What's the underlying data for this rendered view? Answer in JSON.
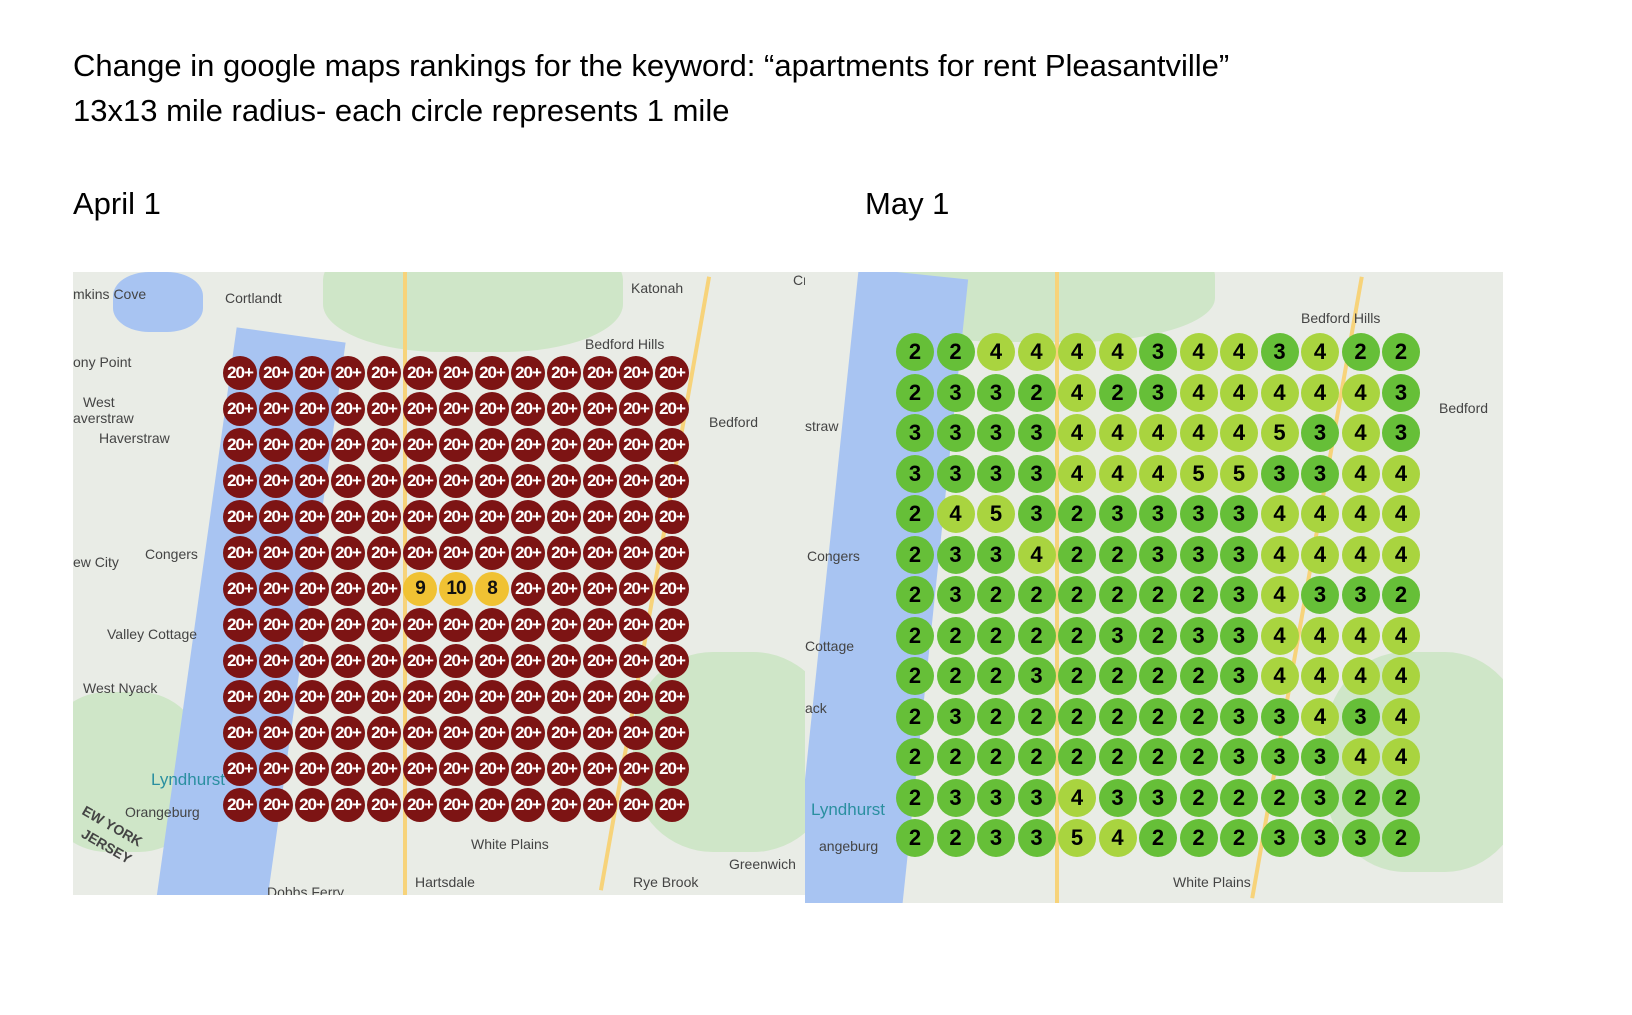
{
  "heading": {
    "line1": "Change in google maps rankings for the keyword: “apartments for rent Pleasantville”",
    "line2": "13x13 mile radius- each circle represents 1 mile"
  },
  "april": {
    "label": "April 1",
    "colors": {
      "not_ranked": "#7d1414",
      "ranked": "#f0c233"
    },
    "places": [
      "mkins Cove",
      "Cortlandt",
      "Katonah",
      "Cross R",
      "ony Point",
      "Bedford Hills",
      "West",
      "averstraw",
      "Haverstraw",
      "Bedford",
      "ew City",
      "Congers",
      "Valley Cottage",
      "West Nyack",
      "Lyndhurst",
      "Orangeburg",
      "White Plains",
      "Hartsdale",
      "Rye Brook",
      "Greenwich",
      "Dobbs Ferry",
      "EW YORK",
      "JERSEY"
    ],
    "grid": [
      [
        "20+",
        "20+",
        "20+",
        "20+",
        "20+",
        "20+",
        "20+",
        "20+",
        "20+",
        "20+",
        "20+",
        "20+",
        "20+"
      ],
      [
        "20+",
        "20+",
        "20+",
        "20+",
        "20+",
        "20+",
        "20+",
        "20+",
        "20+",
        "20+",
        "20+",
        "20+",
        "20+"
      ],
      [
        "20+",
        "20+",
        "20+",
        "20+",
        "20+",
        "20+",
        "20+",
        "20+",
        "20+",
        "20+",
        "20+",
        "20+",
        "20+"
      ],
      [
        "20+",
        "20+",
        "20+",
        "20+",
        "20+",
        "20+",
        "20+",
        "20+",
        "20+",
        "20+",
        "20+",
        "20+",
        "20+"
      ],
      [
        "20+",
        "20+",
        "20+",
        "20+",
        "20+",
        "20+",
        "20+",
        "20+",
        "20+",
        "20+",
        "20+",
        "20+",
        "20+"
      ],
      [
        "20+",
        "20+",
        "20+",
        "20+",
        "20+",
        "20+",
        "20+",
        "20+",
        "20+",
        "20+",
        "20+",
        "20+",
        "20+"
      ],
      [
        "20+",
        "20+",
        "20+",
        "20+",
        "20+",
        "9",
        "10",
        "8",
        "20+",
        "20+",
        "20+",
        "20+",
        "20+"
      ],
      [
        "20+",
        "20+",
        "20+",
        "20+",
        "20+",
        "20+",
        "20+",
        "20+",
        "20+",
        "20+",
        "20+",
        "20+",
        "20+"
      ],
      [
        "20+",
        "20+",
        "20+",
        "20+",
        "20+",
        "20+",
        "20+",
        "20+",
        "20+",
        "20+",
        "20+",
        "20+",
        "20+"
      ],
      [
        "20+",
        "20+",
        "20+",
        "20+",
        "20+",
        "20+",
        "20+",
        "20+",
        "20+",
        "20+",
        "20+",
        "20+",
        "20+"
      ],
      [
        "20+",
        "20+",
        "20+",
        "20+",
        "20+",
        "20+",
        "20+",
        "20+",
        "20+",
        "20+",
        "20+",
        "20+",
        "20+"
      ],
      [
        "20+",
        "20+",
        "20+",
        "20+",
        "20+",
        "20+",
        "20+",
        "20+",
        "20+",
        "20+",
        "20+",
        "20+",
        "20+"
      ],
      [
        "20+",
        "20+",
        "20+",
        "20+",
        "20+",
        "20+",
        "20+",
        "20+",
        "20+",
        "20+",
        "20+",
        "20+",
        "20+"
      ]
    ]
  },
  "may": {
    "label": "May 1",
    "colors": {
      "rank_2_3": "#66bf38",
      "rank_4_5": "#a9d43f"
    },
    "places": [
      "Bedford Hills",
      "Bedford",
      "straw",
      "Congers",
      "Cottage",
      "ack",
      "Lyndhurst",
      "angeburg",
      "White Plains"
    ],
    "grid": [
      [
        2,
        2,
        4,
        4,
        4,
        4,
        3,
        4,
        4,
        3,
        4,
        2,
        2
      ],
      [
        2,
        3,
        3,
        2,
        4,
        2,
        3,
        4,
        4,
        4,
        4,
        4,
        3
      ],
      [
        3,
        3,
        3,
        3,
        4,
        4,
        4,
        4,
        4,
        5,
        3,
        4,
        3
      ],
      [
        3,
        3,
        3,
        3,
        4,
        4,
        4,
        5,
        5,
        3,
        3,
        4,
        4
      ],
      [
        2,
        4,
        5,
        3,
        2,
        3,
        3,
        3,
        3,
        4,
        4,
        4,
        4
      ],
      [
        2,
        3,
        3,
        4,
        2,
        2,
        3,
        3,
        3,
        4,
        4,
        4,
        4
      ],
      [
        2,
        3,
        2,
        2,
        2,
        2,
        2,
        2,
        3,
        4,
        3,
        3,
        2
      ],
      [
        2,
        2,
        2,
        2,
        2,
        3,
        2,
        3,
        3,
        4,
        4,
        4,
        4
      ],
      [
        2,
        2,
        2,
        3,
        2,
        2,
        2,
        2,
        3,
        4,
        4,
        4,
        4
      ],
      [
        2,
        3,
        2,
        2,
        2,
        2,
        2,
        2,
        3,
        3,
        4,
        3,
        4
      ],
      [
        2,
        2,
        2,
        2,
        2,
        2,
        2,
        2,
        3,
        3,
        3,
        4,
        4
      ],
      [
        2,
        3,
        3,
        3,
        4,
        3,
        3,
        2,
        2,
        2,
        3,
        2,
        2
      ],
      [
        2,
        2,
        3,
        3,
        5,
        4,
        2,
        2,
        2,
        3,
        3,
        3,
        2
      ]
    ]
  }
}
